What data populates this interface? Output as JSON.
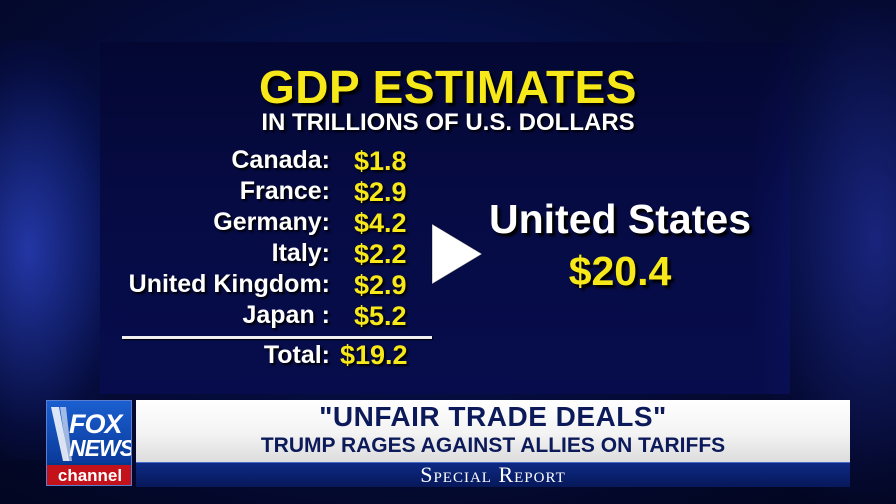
{
  "graphic": {
    "title": "GDP ESTIMATES",
    "subtitle": "IN TRILLIONS OF U.S. DOLLARS",
    "rows": [
      {
        "country": "Canada:",
        "value": "$1.8"
      },
      {
        "country": "France:",
        "value": "$2.9"
      },
      {
        "country": "Germany:",
        "value": "$4.2"
      },
      {
        "country": "Italy:",
        "value": "$2.2"
      },
      {
        "country": "United Kingdom:",
        "value": "$2.9"
      },
      {
        "country": "Japan :",
        "value": "$5.2"
      }
    ],
    "total_label": "Total:",
    "total_value": "$19.2",
    "us_label": "United States",
    "us_value": "$20.4"
  },
  "player": {
    "play_icon": "play-icon"
  },
  "lower_third": {
    "logo_top": "FOX",
    "logo_bottom": "NEWS",
    "logo_channel": "channel",
    "headline": "\"UNFAIR TRADE DEALS\"",
    "subhead": "TRUMP RAGES AGAINST ALLIES ON TARIFFS",
    "show_name": "Special Report"
  },
  "colors": {
    "accent_yellow": "#f7e81a",
    "background_navy": "#060b44",
    "fox_red": "#c4121a",
    "fox_blue": "#1b5fd0"
  }
}
